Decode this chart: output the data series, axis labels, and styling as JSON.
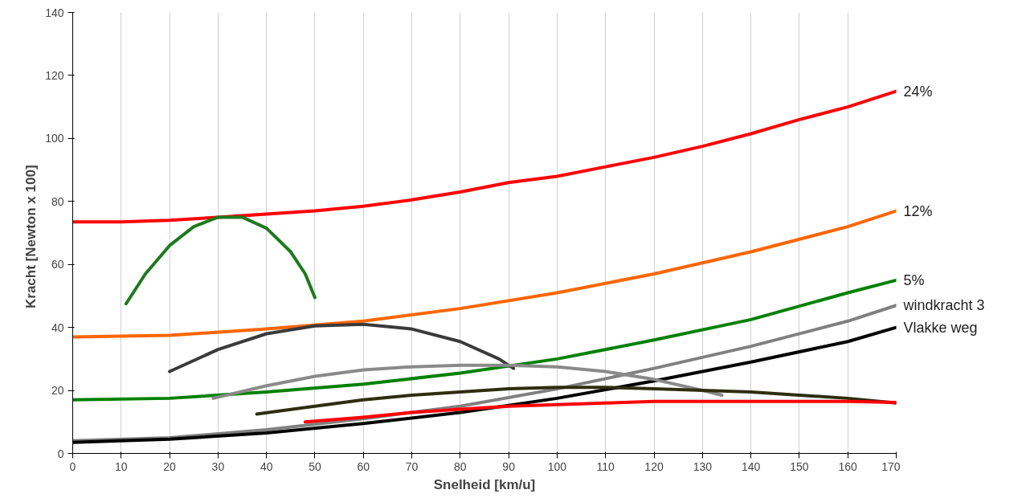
{
  "chart_data": {
    "type": "line",
    "xlabel": "Snelheid [km/u]",
    "ylabel": "Kracht   [Newton x 100]",
    "xlim": [
      0,
      170
    ],
    "ylim": [
      0,
      140
    ],
    "xticks": [
      0,
      10,
      20,
      30,
      40,
      50,
      60,
      70,
      80,
      90,
      100,
      110,
      120,
      130,
      140,
      150,
      160,
      170
    ],
    "yticks": [
      0,
      20,
      40,
      60,
      80,
      100,
      120,
      140
    ],
    "grid": "x",
    "marker": "none",
    "line_style": "solid",
    "series": [
      {
        "name": "24%",
        "color": "#ff0000",
        "x": [
          0,
          10,
          20,
          30,
          40,
          50,
          60,
          70,
          80,
          90,
          100,
          110,
          120,
          130,
          140,
          150,
          160,
          170
        ],
        "values": [
          73.5,
          73.5,
          74,
          75,
          76,
          77,
          78.5,
          80.5,
          83,
          86,
          88,
          91,
          94,
          97.5,
          101.5,
          106,
          110,
          115
        ]
      },
      {
        "name": "12%",
        "color": "#ff6600",
        "x": [
          0,
          20,
          40,
          60,
          80,
          100,
          120,
          140,
          160,
          170
        ],
        "values": [
          37,
          37.5,
          39.5,
          42,
          46,
          51,
          57,
          64,
          72,
          77
        ]
      },
      {
        "name": "5%",
        "color": "#008000",
        "x": [
          0,
          20,
          40,
          60,
          80,
          100,
          120,
          140,
          160,
          170
        ],
        "values": [
          17,
          17.5,
          19.5,
          22,
          25.5,
          30,
          36,
          42.5,
          51,
          55
        ]
      },
      {
        "name": "windkracht 3",
        "color": "#808080",
        "x": [
          0,
          20,
          40,
          60,
          80,
          100,
          120,
          140,
          160,
          170
        ],
        "values": [
          4,
          5,
          7.5,
          11,
          15,
          20.5,
          27,
          34,
          42,
          47
        ]
      },
      {
        "name": "Vlakke weg",
        "color": "#000000",
        "x": [
          0,
          20,
          40,
          60,
          80,
          100,
          120,
          140,
          160,
          170
        ],
        "values": [
          3.5,
          4.5,
          6.5,
          9.5,
          13,
          17.5,
          23,
          29,
          35.5,
          40
        ]
      },
      {
        "color": "#1e7a1e",
        "x": [
          11,
          15,
          20,
          25,
          30,
          35,
          40,
          45,
          48,
          50
        ],
        "values": [
          47.5,
          57,
          66,
          72,
          75,
          75,
          71.5,
          64,
          57,
          49.5
        ]
      },
      {
        "color": "#3a3a3a",
        "x": [
          20,
          30,
          40,
          50,
          60,
          70,
          80,
          88,
          91
        ],
        "values": [
          26,
          33,
          38,
          40.5,
          41,
          39.5,
          35.5,
          30,
          27
        ]
      },
      {
        "color": "#8a8a8a",
        "x": [
          29,
          40,
          50,
          60,
          70,
          80,
          90,
          100,
          110,
          120,
          130,
          134
        ],
        "values": [
          17.5,
          21.5,
          24.5,
          26.5,
          27.5,
          28,
          28,
          27.5,
          26,
          23.5,
          20,
          18.5
        ]
      },
      {
        "color": "#2e2e10",
        "x": [
          38,
          50,
          60,
          70,
          80,
          90,
          100,
          110,
          120,
          130,
          140,
          150,
          160,
          170
        ],
        "values": [
          12.5,
          15,
          17,
          18.5,
          19.5,
          20.5,
          21,
          21,
          20.5,
          20,
          19.5,
          18.5,
          17.5,
          16
        ]
      },
      {
        "color": "#ff0000",
        "x": [
          48,
          60,
          70,
          80,
          90,
          100,
          110,
          120,
          130,
          140,
          150,
          160,
          170
        ],
        "values": [
          10,
          11.5,
          13,
          14,
          15,
          15.5,
          16,
          16.5,
          16.5,
          16.5,
          16.5,
          16.5,
          16.2
        ]
      }
    ]
  }
}
